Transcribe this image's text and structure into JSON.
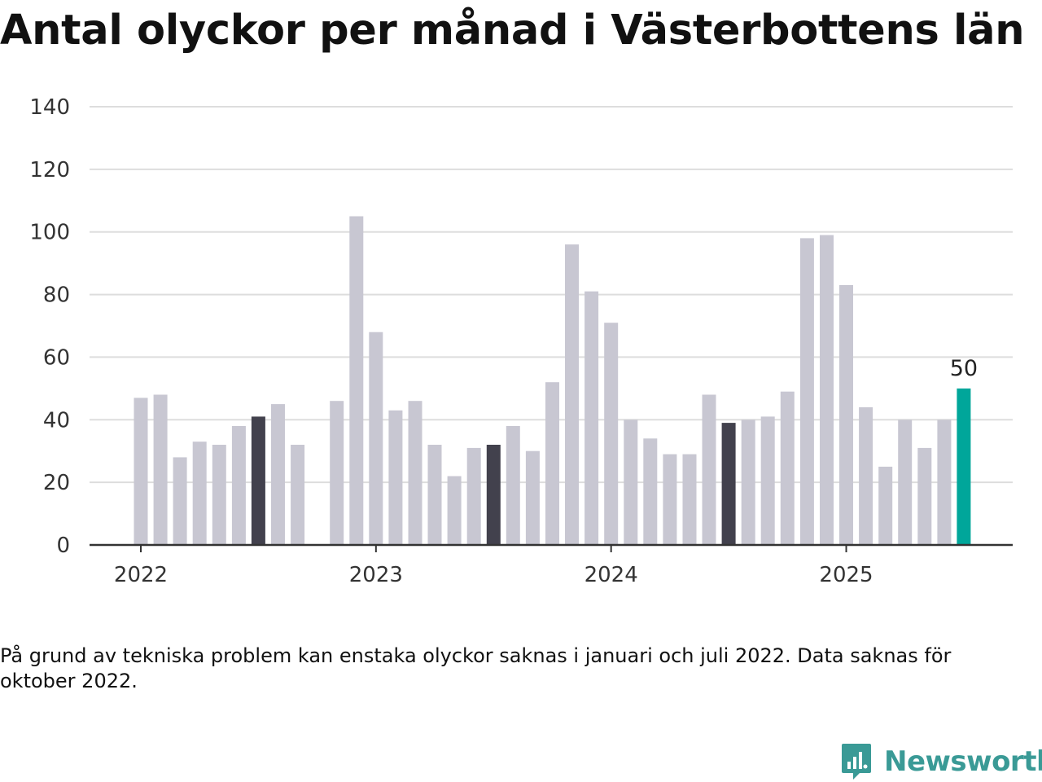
{
  "title": "Antal olyckor per månad i Västerbottens län",
  "footnote": "På grund av tekniska problem kan enstaka olyckor saknas i januari och juli 2022. Data saknas för oktober 2022.",
  "logo": {
    "text": "Newsworthy",
    "icon": "newsworthy-logo-icon",
    "color": "#3a9a96"
  },
  "colors": {
    "default": "#c8c7d2",
    "july": "#42414d",
    "latest": "#00a69a",
    "grid": "#dddddd",
    "axis": "#333333"
  },
  "chart_data": {
    "type": "bar",
    "title": "Antal olyckor per månad i Västerbottens län",
    "xlabel": "",
    "ylabel": "",
    "ylim": [
      0,
      140
    ],
    "yticks": [
      0,
      20,
      40,
      60,
      80,
      100,
      120,
      140
    ],
    "xticks": [
      {
        "label": "2022",
        "month": "2022-01"
      },
      {
        "label": "2023",
        "month": "2023-01"
      },
      {
        "label": "2024",
        "month": "2024-01"
      },
      {
        "label": "2025",
        "month": "2025-01"
      }
    ],
    "grid": true,
    "months": [
      "2022-01",
      "2022-02",
      "2022-03",
      "2022-04",
      "2022-05",
      "2022-06",
      "2022-07",
      "2022-08",
      "2022-09",
      "2022-10",
      "2022-11",
      "2022-12",
      "2023-01",
      "2023-02",
      "2023-03",
      "2023-04",
      "2023-05",
      "2023-06",
      "2023-07",
      "2023-08",
      "2023-09",
      "2023-10",
      "2023-11",
      "2023-12",
      "2024-01",
      "2024-02",
      "2024-03",
      "2024-04",
      "2024-05",
      "2024-06",
      "2024-07",
      "2024-08",
      "2024-09",
      "2024-10",
      "2024-11",
      "2024-12",
      "2025-01",
      "2025-02",
      "2025-03",
      "2025-04",
      "2025-05",
      "2025-06",
      "2025-07"
    ],
    "values": [
      47,
      48,
      28,
      33,
      32,
      38,
      41,
      45,
      32,
      null,
      46,
      105,
      68,
      43,
      46,
      32,
      22,
      31,
      32,
      38,
      30,
      52,
      96,
      81,
      71,
      40,
      34,
      29,
      29,
      48,
      39,
      40,
      41,
      49,
      98,
      99,
      83,
      44,
      25,
      40,
      31,
      40,
      50
    ],
    "highlight_months": [
      "2022-07",
      "2023-07",
      "2024-07"
    ],
    "latest_month": "2025-07",
    "data_label": {
      "month": "2025-07",
      "text": "50"
    }
  }
}
